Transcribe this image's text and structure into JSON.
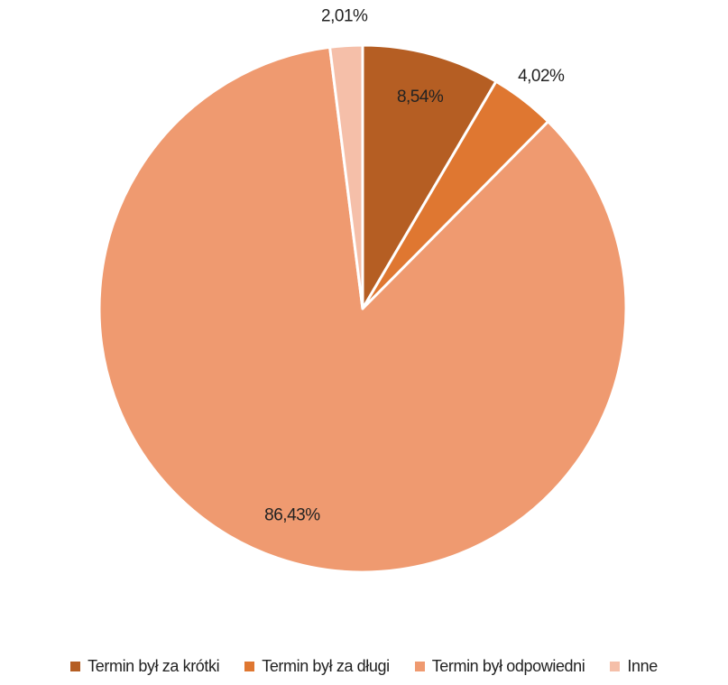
{
  "chart_data": {
    "type": "pie",
    "categories": [
      "Termin był za krótki",
      "Termin był za długi",
      "Termin był odpowiedni",
      "Inne"
    ],
    "values": [
      8.54,
      4.02,
      86.43,
      2.01
    ],
    "value_labels": [
      "8,54%",
      "4,02%",
      "86,43%",
      "2,01%"
    ],
    "colors": [
      "#b55e23",
      "#df7731",
      "#ef9a70",
      "#f5bfa9"
    ],
    "legend": "bottom"
  }
}
